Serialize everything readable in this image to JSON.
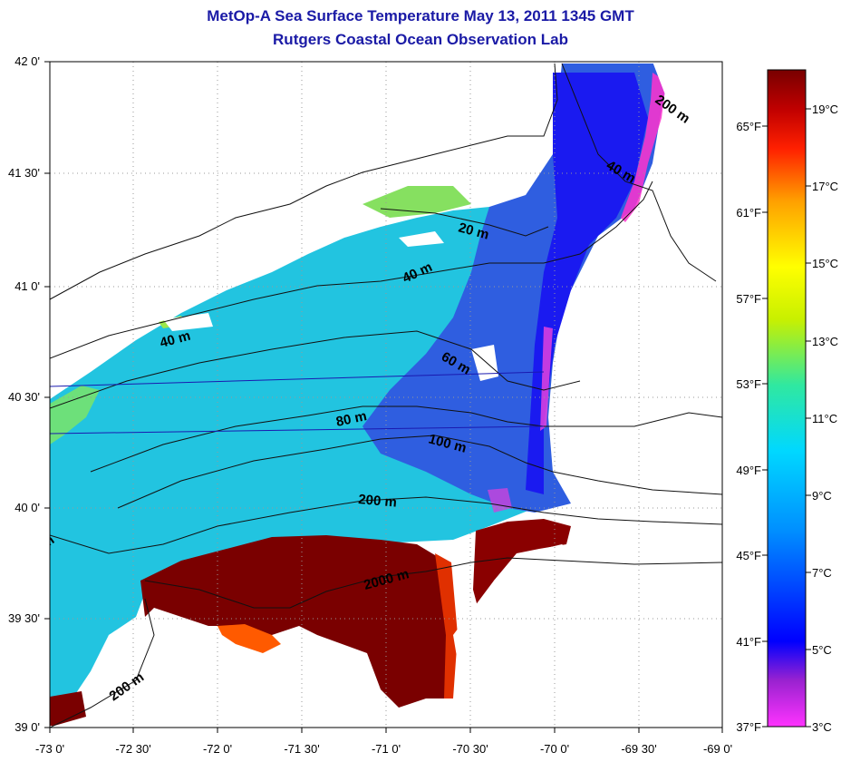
{
  "header": {
    "title": "MetOp-A Sea Surface Temperature May 13, 2011 1345 GMT",
    "subtitle": "Rutgers Coastal Ocean Observation Lab"
  },
  "map": {
    "lat_labels": [
      "42 0'",
      "41 30'",
      "41 0'",
      "40 30'",
      "40 0'",
      "39 30'",
      "39 0'"
    ],
    "lon_labels": [
      "-73 0'",
      "-72 30'",
      "-72 0'",
      "-71 30'",
      "-71 0'",
      "-70 30'",
      "-70 0'",
      "-69 30'",
      "-69 0'"
    ],
    "depth_labels": [
      "200 m",
      "40 m",
      "20 m",
      "40 m",
      "40 m",
      "60 m",
      "80 m",
      "100 m",
      "200 m",
      "2000 m",
      "200 m",
      "m"
    ],
    "lat_range": [
      39.0,
      42.0
    ],
    "lon_range": [
      -73.0,
      -69.0
    ]
  },
  "colorbar": {
    "celsius_labels": [
      "19°C",
      "17°C",
      "15°C",
      "13°C",
      "11°C",
      "9°C",
      "7°C",
      "5°C",
      "3°C"
    ],
    "fahrenheit_labels": [
      "65°F",
      "61°F",
      "57°F",
      "53°F",
      "49°F",
      "45°F",
      "41°F",
      "37°F"
    ],
    "celsius_range": [
      3,
      20
    ]
  },
  "colors": {
    "title": "#1a1aa6",
    "warm": "#7a0000",
    "cold": "#ff33cc",
    "shelf": "#22c4e0"
  }
}
